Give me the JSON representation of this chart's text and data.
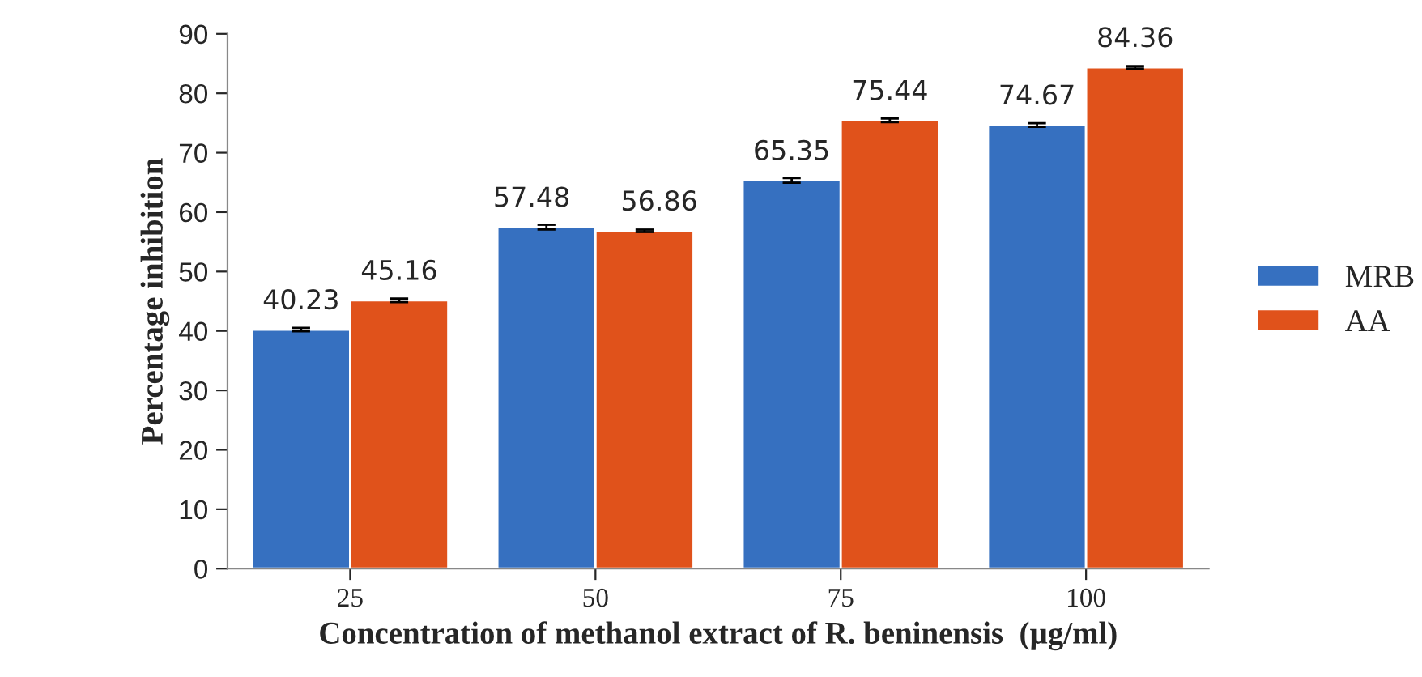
{
  "chart_data": {
    "type": "bar",
    "xlabel": "Concentration of methanol extract of R. beninensis  (µg/ml)",
    "ylabel": "Percentage inhibition",
    "categories": [
      "25",
      "50",
      "75",
      "100"
    ],
    "series": [
      {
        "name": "MRB",
        "color": "#3670c0",
        "values": [
          40.23,
          57.48,
          65.35,
          74.67
        ],
        "errors": [
          0.3,
          0.4,
          0.4,
          0.3
        ]
      },
      {
        "name": "AA",
        "color": "#e0521b",
        "values": [
          45.16,
          56.86,
          75.44,
          84.36
        ],
        "errors": [
          0.3,
          0.2,
          0.3,
          0.2
        ]
      }
    ],
    "ylim": [
      0,
      90
    ],
    "yticks": [
      0,
      10,
      20,
      30,
      40,
      50,
      60,
      70,
      80,
      90
    ],
    "data_labels": true,
    "legend": "right",
    "grid": false
  }
}
